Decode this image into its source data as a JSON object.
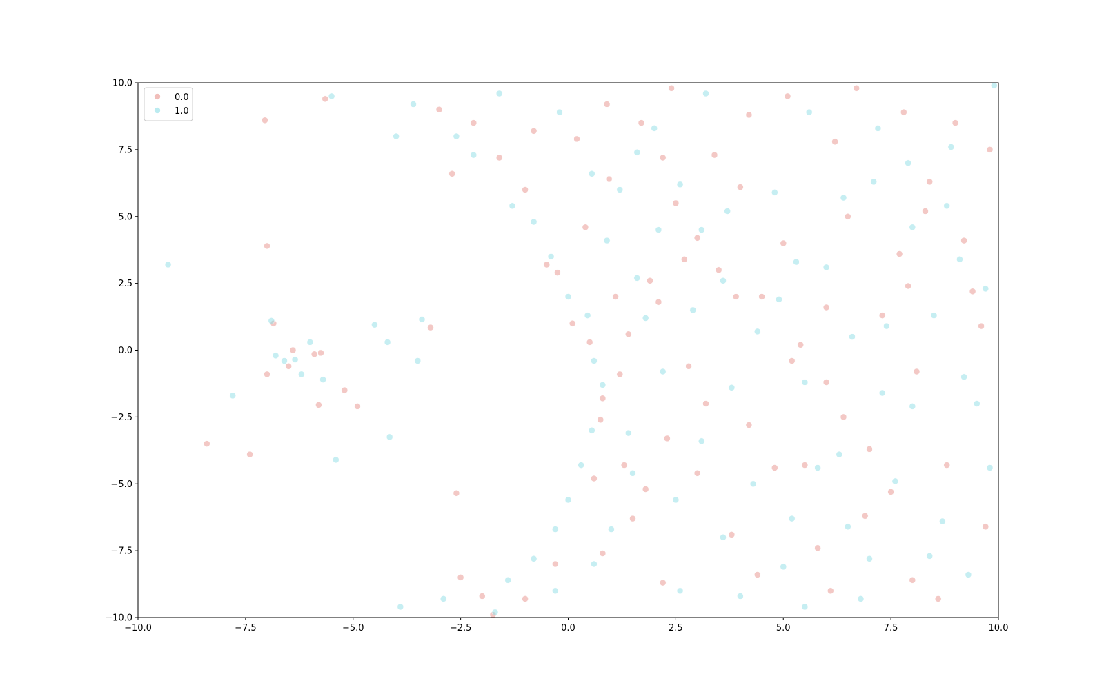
{
  "chart_data": {
    "type": "scatter",
    "title": "",
    "xlabel": "",
    "ylabel": "",
    "xlim": [
      -10,
      10
    ],
    "ylim": [
      -10,
      10
    ],
    "x_ticks": [
      -10.0,
      -7.5,
      -5.0,
      -2.5,
      0.0,
      2.5,
      5.0,
      7.5,
      10.0
    ],
    "y_ticks": [
      -10.0,
      -7.5,
      -5.0,
      -2.5,
      0.0,
      2.5,
      5.0,
      7.5,
      10.0
    ],
    "x_tick_labels": [
      "−10.0",
      "−7.5",
      "−5.0",
      "−2.5",
      "0.0",
      "2.5",
      "5.0",
      "7.5",
      "10.0"
    ],
    "y_tick_labels": [
      "−10.0",
      "−7.5",
      "−5.0",
      "−2.5",
      "0.0",
      "2.5",
      "5.0",
      "7.5",
      "10.0"
    ],
    "grid": false,
    "legend": {
      "position": "top-left",
      "entries": [
        "0.0",
        "1.0"
      ]
    },
    "series": [
      {
        "name": "0.0",
        "color": "#e8928c",
        "points": [
          [
            -7.05,
            8.6
          ],
          [
            -7.0,
            3.9
          ],
          [
            -6.85,
            1.0
          ],
          [
            -7.0,
            -0.9
          ],
          [
            -6.5,
            -0.6
          ],
          [
            -6.4,
            0.0
          ],
          [
            -5.9,
            -0.15
          ],
          [
            -5.75,
            -0.1
          ],
          [
            -5.8,
            -2.05
          ],
          [
            -5.2,
            -1.5
          ],
          [
            -4.9,
            -2.1
          ],
          [
            -3.2,
            0.85
          ],
          [
            -8.4,
            -3.5
          ],
          [
            -7.4,
            -3.9
          ],
          [
            -2.6,
            -5.35
          ],
          [
            -5.65,
            9.4
          ],
          [
            -2.7,
            6.6
          ],
          [
            -3.0,
            9.0
          ],
          [
            -2.2,
            8.5
          ],
          [
            -1.6,
            7.2
          ],
          [
            -1.0,
            6.0
          ],
          [
            -0.5,
            3.2
          ],
          [
            -0.25,
            2.9
          ],
          [
            0.1,
            1.0
          ],
          [
            0.5,
            0.3
          ],
          [
            0.8,
            -1.8
          ],
          [
            0.75,
            -2.6
          ],
          [
            0.9,
            9.2
          ],
          [
            1.5,
            -6.3
          ],
          [
            1.3,
            -4.3
          ],
          [
            0.8,
            -7.6
          ],
          [
            0.95,
            6.4
          ],
          [
            -2.0,
            -9.2
          ],
          [
            -1.0,
            -9.3
          ],
          [
            -2.5,
            -8.5
          ],
          [
            -1.75,
            -9.9
          ],
          [
            -0.3,
            -8.0
          ],
          [
            1.8,
            -5.2
          ],
          [
            2.5,
            5.5
          ],
          [
            3.0,
            4.2
          ],
          [
            3.5,
            3.0
          ],
          [
            4.5,
            2.0
          ],
          [
            5.2,
            -0.4
          ],
          [
            5.4,
            0.2
          ],
          [
            6.0,
            -1.2
          ],
          [
            7.3,
            1.3
          ],
          [
            7.9,
            2.4
          ],
          [
            8.3,
            5.2
          ],
          [
            9.4,
            2.2
          ],
          [
            8.0,
            -8.6
          ],
          [
            4.8,
            -4.4
          ],
          [
            5.5,
            -4.3
          ],
          [
            6.2,
            7.8
          ],
          [
            4.2,
            8.8
          ],
          [
            2.2,
            -8.7
          ],
          [
            3.2,
            -2.0
          ],
          [
            7.0,
            -3.7
          ],
          [
            9.8,
            7.5
          ],
          [
            2.1,
            1.8
          ],
          [
            6.9,
            -6.2
          ],
          [
            3.8,
            -6.9
          ],
          [
            8.8,
            -4.3
          ],
          [
            9.6,
            0.9
          ],
          [
            1.9,
            2.6
          ],
          [
            6.5,
            5.0
          ],
          [
            4.0,
            6.1
          ],
          [
            2.8,
            -0.6
          ],
          [
            7.8,
            8.9
          ],
          [
            5.8,
            -7.4
          ],
          [
            1.7,
            8.5
          ],
          [
            -0.8,
            8.2
          ],
          [
            0.2,
            7.9
          ],
          [
            0.4,
            4.6
          ],
          [
            1.1,
            2.0
          ],
          [
            2.4,
            9.8
          ],
          [
            3.4,
            7.3
          ],
          [
            5.1,
            9.5
          ],
          [
            6.7,
            9.8
          ],
          [
            8.4,
            6.3
          ],
          [
            9.2,
            4.1
          ],
          [
            8.1,
            -0.8
          ],
          [
            6.4,
            -2.5
          ],
          [
            4.2,
            -2.8
          ],
          [
            3.0,
            -4.6
          ],
          [
            2.3,
            -3.3
          ],
          [
            4.4,
            -8.4
          ],
          [
            6.1,
            -9.0
          ],
          [
            8.6,
            -9.3
          ],
          [
            9.7,
            -6.6
          ],
          [
            7.5,
            -5.3
          ],
          [
            5.0,
            4.0
          ],
          [
            3.9,
            2.0
          ],
          [
            2.7,
            3.4
          ],
          [
            1.4,
            0.6
          ],
          [
            6.0,
            1.6
          ],
          [
            7.7,
            3.6
          ],
          [
            9.0,
            8.5
          ],
          [
            0.6,
            -4.8
          ],
          [
            1.2,
            -0.9
          ],
          [
            2.2,
            7.2
          ]
        ]
      },
      {
        "name": "1.0",
        "color": "#8ddde6",
        "points": [
          [
            -9.3,
            3.2
          ],
          [
            -7.8,
            -1.7
          ],
          [
            -6.9,
            1.1
          ],
          [
            -6.8,
            -0.2
          ],
          [
            -6.6,
            -0.4
          ],
          [
            -6.2,
            -0.9
          ],
          [
            -6.0,
            0.3
          ],
          [
            -5.7,
            -1.1
          ],
          [
            -5.4,
            -4.1
          ],
          [
            -4.5,
            0.95
          ],
          [
            -4.2,
            0.3
          ],
          [
            -4.15,
            -3.25
          ],
          [
            -3.5,
            -0.4
          ],
          [
            -3.4,
            1.15
          ],
          [
            -6.35,
            -0.35
          ],
          [
            -5.5,
            9.5
          ],
          [
            -4.0,
            8.0
          ],
          [
            -3.6,
            9.2
          ],
          [
            -2.2,
            7.3
          ],
          [
            -1.3,
            5.4
          ],
          [
            -0.8,
            4.8
          ],
          [
            -0.4,
            3.5
          ],
          [
            0.0,
            2.0
          ],
          [
            0.45,
            1.3
          ],
          [
            0.6,
            -0.4
          ],
          [
            0.8,
            -1.3
          ],
          [
            0.55,
            -3.0
          ],
          [
            0.3,
            -4.3
          ],
          [
            0.0,
            -5.6
          ],
          [
            -0.3,
            -6.7
          ],
          [
            -0.8,
            -7.8
          ],
          [
            -1.4,
            -8.6
          ],
          [
            -2.9,
            -9.3
          ],
          [
            -3.9,
            -9.6
          ],
          [
            -1.7,
            -9.8
          ],
          [
            -0.3,
            -9.0
          ],
          [
            0.6,
            -8.0
          ],
          [
            1.0,
            -6.7
          ],
          [
            1.5,
            -4.6
          ],
          [
            1.4,
            -3.1
          ],
          [
            1.6,
            2.7
          ],
          [
            1.2,
            6.0
          ],
          [
            2.1,
            4.5
          ],
          [
            2.6,
            6.2
          ],
          [
            3.1,
            4.5
          ],
          [
            3.6,
            2.6
          ],
          [
            4.4,
            0.7
          ],
          [
            5.5,
            -1.2
          ],
          [
            6.6,
            0.5
          ],
          [
            7.3,
            -1.6
          ],
          [
            8.0,
            -2.1
          ],
          [
            9.5,
            -2.0
          ],
          [
            9.7,
            2.3
          ],
          [
            9.1,
            3.4
          ],
          [
            8.0,
            4.6
          ],
          [
            7.1,
            6.3
          ],
          [
            5.6,
            8.9
          ],
          [
            3.2,
            9.6
          ],
          [
            2.0,
            8.3
          ],
          [
            4.8,
            5.9
          ],
          [
            5.2,
            -6.3
          ],
          [
            6.5,
            -6.6
          ],
          [
            7.6,
            -4.9
          ],
          [
            8.7,
            -6.4
          ],
          [
            9.3,
            -8.4
          ],
          [
            6.8,
            -9.3
          ],
          [
            5.0,
            -8.1
          ],
          [
            3.6,
            -7.0
          ],
          [
            2.5,
            -5.6
          ],
          [
            3.1,
            -3.4
          ],
          [
            3.8,
            -1.4
          ],
          [
            2.2,
            -0.8
          ],
          [
            4.9,
            1.9
          ],
          [
            6.0,
            3.1
          ],
          [
            7.4,
            0.9
          ],
          [
            8.5,
            1.3
          ],
          [
            9.8,
            -4.4
          ],
          [
            4.3,
            -5.0
          ],
          [
            5.8,
            -4.4
          ],
          [
            7.2,
            8.3
          ],
          [
            8.9,
            7.6
          ],
          [
            9.9,
            9.9
          ],
          [
            0.55,
            6.6
          ],
          [
            1.6,
            7.4
          ],
          [
            -0.2,
            8.9
          ],
          [
            -1.6,
            9.6
          ],
          [
            -2.6,
            8.0
          ],
          [
            0.9,
            4.1
          ],
          [
            1.8,
            1.2
          ],
          [
            2.9,
            1.5
          ],
          [
            3.7,
            5.2
          ],
          [
            5.3,
            3.3
          ],
          [
            6.4,
            5.7
          ],
          [
            7.9,
            7.0
          ],
          [
            8.4,
            -7.7
          ],
          [
            7.0,
            -7.8
          ],
          [
            5.5,
            -9.6
          ],
          [
            4.0,
            -9.2
          ],
          [
            2.6,
            -9.0
          ],
          [
            6.3,
            -3.9
          ],
          [
            9.2,
            -1.0
          ],
          [
            8.8,
            5.4
          ]
        ]
      }
    ]
  }
}
